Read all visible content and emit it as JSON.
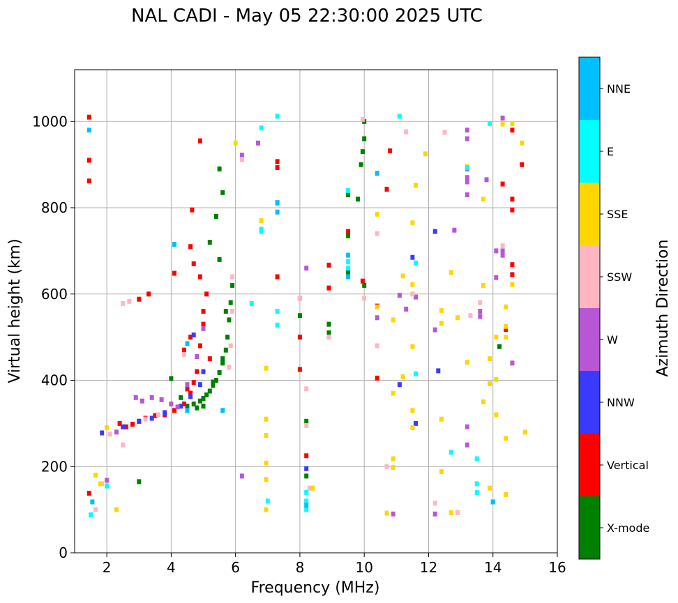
{
  "chart_data": {
    "type": "scatter",
    "title": "NAL CADI - May 05 22:30:00 2025 UTC",
    "xlabel": "Frequency (MHz)",
    "ylabel": "Virtual height (km)",
    "xlim": [
      1,
      16
    ],
    "ylim": [
      0,
      1120
    ],
    "xticks": [
      2,
      4,
      6,
      8,
      10,
      12,
      14,
      16
    ],
    "yticks": [
      0,
      200,
      400,
      600,
      800,
      1000
    ],
    "grid": true,
    "colorbar": {
      "label": "Azimuth Direction",
      "categories": [
        {
          "name": "X-mode",
          "color": "#008000"
        },
        {
          "name": "Vertical",
          "color": "#ff0000"
        },
        {
          "name": "NNW",
          "color": "#3a3aff"
        },
        {
          "name": "W",
          "color": "#b857d6"
        },
        {
          "name": "SSW",
          "color": "#ffb6c1"
        },
        {
          "name": "SSE",
          "color": "#ffd700"
        },
        {
          "name": "E",
          "color": "#00ffff"
        },
        {
          "name": "NNE",
          "color": "#00bfff"
        }
      ]
    },
    "series": [
      {
        "name": "X-mode",
        "points": [
          [
            4.0,
            404
          ],
          [
            4.3,
            360
          ],
          [
            4.5,
            340
          ],
          [
            4.7,
            345
          ],
          [
            4.9,
            352
          ],
          [
            5.0,
            358
          ],
          [
            5.1,
            366
          ],
          [
            5.2,
            375
          ],
          [
            5.3,
            388
          ],
          [
            5.4,
            400
          ],
          [
            5.5,
            418
          ],
          [
            5.6,
            440
          ],
          [
            5.7,
            470
          ],
          [
            5.75,
            500
          ],
          [
            5.8,
            540
          ],
          [
            5.85,
            580
          ],
          [
            5.9,
            620
          ],
          [
            5.5,
            680
          ],
          [
            5.2,
            720
          ],
          [
            5.4,
            780
          ],
          [
            5.6,
            835
          ],
          [
            5.5,
            890
          ],
          [
            4.5,
            330
          ],
          [
            4.8,
            336
          ],
          [
            5.0,
            340
          ],
          [
            5.3,
            396
          ],
          [
            5.6,
            450
          ],
          [
            5.7,
            560
          ],
          [
            3.0,
            165
          ],
          [
            8.0,
            550
          ],
          [
            8.9,
            530
          ],
          [
            8.9,
            510
          ],
          [
            9.5,
            830
          ],
          [
            9.5,
            735
          ],
          [
            9.5,
            650
          ],
          [
            9.8,
            820
          ],
          [
            9.9,
            900
          ],
          [
            9.95,
            930
          ],
          [
            10.0,
            960
          ],
          [
            10.0,
            1000
          ],
          [
            10.0,
            620
          ],
          [
            8.2,
            305
          ],
          [
            8.2,
            178
          ],
          [
            14.2,
            478
          ]
        ]
      },
      {
        "name": "Vertical",
        "points": [
          [
            1.45,
            1010
          ],
          [
            1.45,
            910
          ],
          [
            1.45,
            862
          ],
          [
            1.45,
            138
          ],
          [
            2.4,
            300
          ],
          [
            2.6,
            292
          ],
          [
            2.8,
            298
          ],
          [
            3.0,
            305
          ],
          [
            3.2,
            312
          ],
          [
            3.5,
            318
          ],
          [
            3.8,
            320
          ],
          [
            4.1,
            330
          ],
          [
            4.4,
            345
          ],
          [
            4.6,
            370
          ],
          [
            4.7,
            395
          ],
          [
            4.8,
            420
          ],
          [
            4.9,
            480
          ],
          [
            5.0,
            530
          ],
          [
            5.0,
            560
          ],
          [
            5.1,
            600
          ],
          [
            4.9,
            640
          ],
          [
            4.7,
            670
          ],
          [
            4.6,
            710
          ],
          [
            4.1,
            648
          ],
          [
            4.65,
            795
          ],
          [
            4.9,
            955
          ],
          [
            3.0,
            588
          ],
          [
            3.3,
            600
          ],
          [
            7.3,
            907
          ],
          [
            7.3,
            893
          ],
          [
            7.3,
            640
          ],
          [
            8.0,
            590
          ],
          [
            8.0,
            500
          ],
          [
            8.0,
            425
          ],
          [
            8.2,
            225
          ],
          [
            8.9,
            614
          ],
          [
            8.9,
            667
          ],
          [
            9.5,
            745
          ],
          [
            9.95,
            630
          ],
          [
            10.4,
            572
          ],
          [
            10.4,
            405
          ],
          [
            10.8,
            932
          ],
          [
            10.7,
            843
          ],
          [
            14.3,
            855
          ],
          [
            14.6,
            820
          ],
          [
            14.6,
            668
          ],
          [
            14.6,
            645
          ],
          [
            14.4,
            518
          ],
          [
            14.9,
            900
          ],
          [
            14.6,
            980
          ],
          [
            14.6,
            795
          ],
          [
            4.5,
            380
          ],
          [
            5.2,
            450
          ],
          [
            4.4,
            470
          ],
          [
            4.6,
            500
          ]
        ]
      },
      {
        "name": "NNW",
        "points": [
          [
            1.85,
            278
          ],
          [
            2.5,
            292
          ],
          [
            3.0,
            305
          ],
          [
            3.4,
            312
          ],
          [
            3.8,
            325
          ],
          [
            4.3,
            340
          ],
          [
            4.6,
            362
          ],
          [
            4.9,
            390
          ],
          [
            5.0,
            420
          ],
          [
            4.7,
            505
          ],
          [
            8.2,
            195
          ],
          [
            11.1,
            390
          ],
          [
            11.6,
            300
          ],
          [
            12.3,
            422
          ],
          [
            12.2,
            745
          ],
          [
            11.5,
            685
          ]
        ]
      },
      {
        "name": "W",
        "points": [
          [
            2.0,
            168
          ],
          [
            2.3,
            280
          ],
          [
            2.9,
            360
          ],
          [
            3.1,
            352
          ],
          [
            3.4,
            360
          ],
          [
            3.7,
            355
          ],
          [
            4.0,
            345
          ],
          [
            4.2,
            338
          ],
          [
            4.5,
            390
          ],
          [
            4.8,
            455
          ],
          [
            5.0,
            520
          ],
          [
            6.2,
            922
          ],
          [
            6.7,
            950
          ],
          [
            6.2,
            178
          ],
          [
            8.2,
            660
          ],
          [
            10.4,
            545
          ],
          [
            10.9,
            90
          ],
          [
            11.1,
            597
          ],
          [
            11.3,
            565
          ],
          [
            11.6,
            593
          ],
          [
            12.2,
            517
          ],
          [
            12.2,
            90
          ],
          [
            12.8,
            748
          ],
          [
            13.2,
            980
          ],
          [
            13.2,
            960
          ],
          [
            13.2,
            890
          ],
          [
            13.2,
            870
          ],
          [
            13.2,
            860
          ],
          [
            13.2,
            830
          ],
          [
            13.2,
            292
          ],
          [
            13.2,
            250
          ],
          [
            13.6,
            560
          ],
          [
            13.6,
            548
          ],
          [
            13.8,
            865
          ],
          [
            14.1,
            700
          ],
          [
            14.3,
            700
          ],
          [
            14.3,
            690
          ],
          [
            14.3,
            1008
          ],
          [
            14.1,
            638
          ],
          [
            14.6,
            440
          ]
        ]
      },
      {
        "name": "SSW",
        "points": [
          [
            1.65,
            100
          ],
          [
            1.85,
            160
          ],
          [
            2.1,
            275
          ],
          [
            2.5,
            250
          ],
          [
            2.5,
            578
          ],
          [
            2.7,
            583
          ],
          [
            3.2,
            310
          ],
          [
            3.6,
            320
          ],
          [
            4.4,
            460
          ],
          [
            5.8,
            430
          ],
          [
            5.85,
            480
          ],
          [
            5.9,
            560
          ],
          [
            5.9,
            640
          ],
          [
            6.2,
            912
          ],
          [
            8.0,
            590
          ],
          [
            8.2,
            380
          ],
          [
            8.2,
            295
          ],
          [
            8.3,
            150
          ],
          [
            8.2,
            120
          ],
          [
            8.9,
            500
          ],
          [
            9.95,
            1005
          ],
          [
            10.0,
            590
          ],
          [
            10.4,
            740
          ],
          [
            10.4,
            480
          ],
          [
            10.7,
            200
          ],
          [
            11.5,
            600
          ],
          [
            12.2,
            115
          ],
          [
            12.5,
            975
          ],
          [
            12.9,
            93
          ],
          [
            13.3,
            550
          ],
          [
            13.6,
            580
          ],
          [
            14.3,
            712
          ],
          [
            11.3,
            976
          ]
        ]
      },
      {
        "name": "SSE",
        "points": [
          [
            1.65,
            180
          ],
          [
            1.8,
            160
          ],
          [
            2.0,
            290
          ],
          [
            2.3,
            100
          ],
          [
            6.0,
            950
          ],
          [
            6.8,
            770
          ],
          [
            6.95,
            428
          ],
          [
            6.95,
            310
          ],
          [
            6.95,
            272
          ],
          [
            6.95,
            208
          ],
          [
            6.95,
            170
          ],
          [
            6.95,
            100
          ],
          [
            8.4,
            150
          ],
          [
            10.4,
            880
          ],
          [
            10.4,
            785
          ],
          [
            10.4,
            570
          ],
          [
            10.7,
            92
          ],
          [
            10.9,
            540
          ],
          [
            10.9,
            370
          ],
          [
            10.9,
            218
          ],
          [
            10.9,
            198
          ],
          [
            11.2,
            642
          ],
          [
            11.2,
            408
          ],
          [
            11.5,
            765
          ],
          [
            11.5,
            622
          ],
          [
            11.5,
            478
          ],
          [
            11.5,
            330
          ],
          [
            11.5,
            290
          ],
          [
            11.6,
            852
          ],
          [
            11.9,
            925
          ],
          [
            12.4,
            562
          ],
          [
            12.4,
            532
          ],
          [
            12.4,
            310
          ],
          [
            12.4,
            188
          ],
          [
            12.7,
            650
          ],
          [
            12.7,
            93
          ],
          [
            12.9,
            545
          ],
          [
            13.2,
            442
          ],
          [
            13.2,
            895
          ],
          [
            13.7,
            820
          ],
          [
            13.7,
            620
          ],
          [
            13.7,
            350
          ],
          [
            13.9,
            450
          ],
          [
            13.9,
            392
          ],
          [
            13.9,
            150
          ],
          [
            14.1,
            500
          ],
          [
            14.1,
            402
          ],
          [
            14.1,
            320
          ],
          [
            14.3,
            994
          ],
          [
            14.4,
            570
          ],
          [
            14.4,
            525
          ],
          [
            14.4,
            500
          ],
          [
            14.4,
            265
          ],
          [
            14.4,
            135
          ],
          [
            14.6,
            622
          ],
          [
            14.6,
            995
          ],
          [
            14.9,
            950
          ],
          [
            15.0,
            280
          ]
        ]
      },
      {
        "name": "E",
        "points": [
          [
            1.5,
            88
          ],
          [
            2.0,
            155
          ],
          [
            6.8,
            985
          ],
          [
            6.8,
            750
          ],
          [
            6.8,
            745
          ],
          [
            6.5,
            578
          ],
          [
            7.0,
            120
          ],
          [
            7.3,
            1012
          ],
          [
            7.3,
            810
          ],
          [
            7.3,
            560
          ],
          [
            7.3,
            528
          ],
          [
            8.2,
            140
          ],
          [
            8.2,
            120
          ],
          [
            8.2,
            100
          ],
          [
            9.5,
            675
          ],
          [
            9.5,
            660
          ],
          [
            9.5,
            840
          ],
          [
            11.1,
            1012
          ],
          [
            11.6,
            415
          ],
          [
            11.6,
            672
          ],
          [
            12.7,
            233
          ],
          [
            13.2,
            893
          ],
          [
            13.5,
            218
          ],
          [
            13.5,
            160
          ],
          [
            13.5,
            140
          ],
          [
            14.0,
            118
          ],
          [
            13.9,
            995
          ]
        ]
      },
      {
        "name": "NNE",
        "points": [
          [
            1.45,
            980
          ],
          [
            1.55,
            118
          ],
          [
            4.1,
            715
          ],
          [
            4.5,
            330
          ],
          [
            4.5,
            485
          ],
          [
            5.6,
            330
          ],
          [
            7.3,
            812
          ],
          [
            7.3,
            790
          ],
          [
            8.2,
            110
          ],
          [
            9.5,
            690
          ],
          [
            9.5,
            640
          ],
          [
            10.4,
            880
          ],
          [
            14.0,
            118
          ]
        ]
      }
    ]
  }
}
